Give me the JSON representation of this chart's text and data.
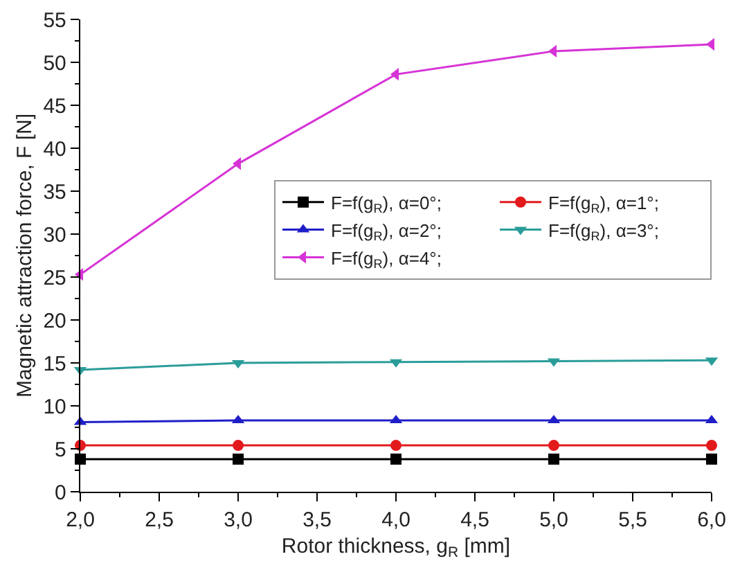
{
  "chart_data": {
    "type": "line",
    "xlabel": "Rotor thickness, g$_{R}$ [mm]",
    "ylabel": "Magnetic attraction force, F [N]",
    "x": [
      2,
      3,
      4,
      5,
      6
    ],
    "xlim": [
      2,
      6
    ],
    "xticks": [
      {
        "value": 2,
        "label": "2,0"
      },
      {
        "value": 2.5,
        "label": "2,5"
      },
      {
        "value": 3,
        "label": "3,0"
      },
      {
        "value": 3.5,
        "label": "3,5"
      },
      {
        "value": 4,
        "label": "4,0"
      },
      {
        "value": 4.5,
        "label": "4,5"
      },
      {
        "value": 5,
        "label": "5,0"
      },
      {
        "value": 5.5,
        "label": "5,5"
      },
      {
        "value": 6,
        "label": "6,0"
      }
    ],
    "ylim": [
      0,
      55
    ],
    "yticks": [
      0,
      5,
      10,
      15,
      20,
      25,
      30,
      35,
      40,
      45,
      50,
      55
    ],
    "grid": false,
    "legend": "right",
    "line_style": "solid",
    "series": [
      {
        "name": "F=f(g$_{R}$), α=0°;",
        "color": "#000000",
        "marker": "square",
        "values": [
          3.8,
          3.8,
          3.8,
          3.8,
          3.8
        ]
      },
      {
        "name": "F=f(g$_{R}$), α=1°;",
        "color": "#e31a1c",
        "marker": "circle",
        "values": [
          5.4,
          5.4,
          5.4,
          5.4,
          5.4
        ]
      },
      {
        "name": "F=f(g$_{R}$), α=2°;",
        "color": "#1f1fc8",
        "marker": "triangle",
        "values": [
          8.1,
          8.3,
          8.3,
          8.3,
          8.3
        ]
      },
      {
        "name": "F=f(g$_{R}$), α=3°;",
        "color": "#2a9d9a",
        "marker": "triangle-down",
        "values": [
          14.2,
          15.0,
          15.1,
          15.2,
          15.3
        ]
      },
      {
        "name": "F=f(g$_{R}$), α=4°;",
        "color": "#d633d6",
        "marker": "triangle-left",
        "values": [
          25.3,
          38.2,
          48.6,
          51.3,
          52.1
        ]
      }
    ]
  }
}
